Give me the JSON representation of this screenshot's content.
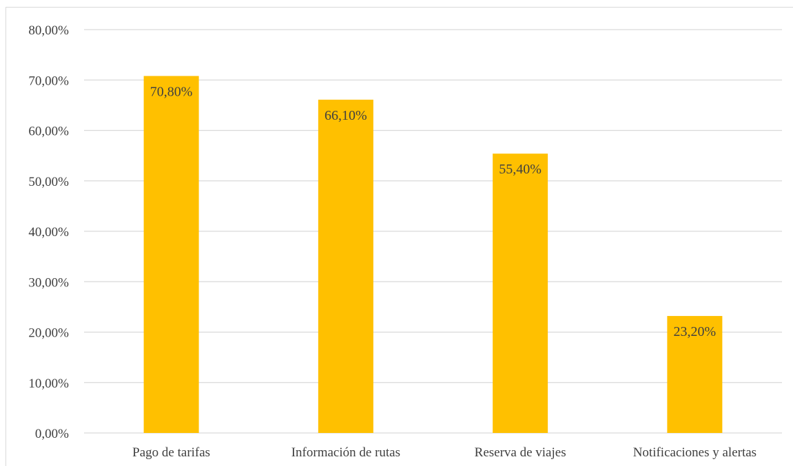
{
  "chart_data": {
    "type": "bar",
    "categories": [
      "Pago de tarifas",
      "Información de rutas",
      "Reserva de viajes",
      "Notificaciones y alertas"
    ],
    "values": [
      70.8,
      66.1,
      55.4,
      23.2
    ],
    "data_labels": [
      "70,80%",
      "66,10%",
      "55,40%",
      "23,20%"
    ],
    "y_tick_labels": [
      "0,00%",
      "10,00%",
      "20,00%",
      "30,00%",
      "40,00%",
      "50,00%",
      "60,00%",
      "70,00%",
      "80,00%"
    ],
    "ylim": [
      0,
      80
    ],
    "title": "",
    "xlabel": "",
    "ylabel": "",
    "grid": true,
    "legend": "none",
    "bar_color": "#FFC000",
    "gridline_color": "#D9D9D9",
    "text_color": "#3F3F3F"
  }
}
